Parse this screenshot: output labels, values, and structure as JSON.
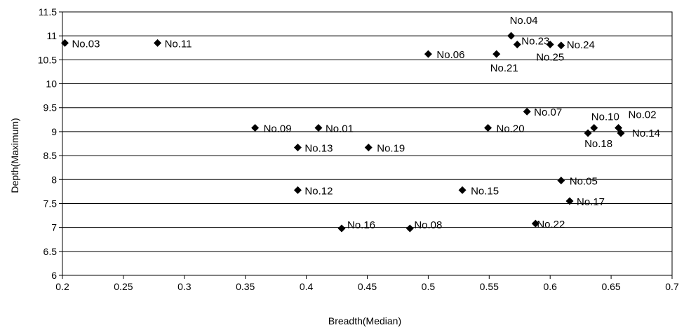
{
  "chart_data": {
    "type": "scatter",
    "title": "",
    "xlabel": "Breadth(Median)",
    "ylabel": "Depth(Maximum)",
    "xlim": [
      0.2,
      0.7
    ],
    "ylim": [
      6,
      11.5
    ],
    "xticks": [
      "0.2",
      "0.25",
      "0.3",
      "0.35",
      "0.4",
      "0.45",
      "0.5",
      "0.55",
      "0.6",
      "0.65",
      "0.7"
    ],
    "yticks": [
      "6",
      "6.5",
      "7",
      "7.5",
      "8",
      "8.5",
      "9",
      "9.5",
      "10",
      "10.5",
      "11",
      "11.5"
    ],
    "grid": "horizontal",
    "legend": "none",
    "marker": "diamond",
    "color": "#000000",
    "points": [
      {
        "label": "No.03",
        "x": 0.202,
        "y": 10.85
      },
      {
        "label": "No.11",
        "x": 0.278,
        "y": 10.85
      },
      {
        "label": "No.04",
        "x": 0.568,
        "y": 11.0
      },
      {
        "label": "No.23",
        "x": 0.573,
        "y": 10.82
      },
      {
        "label": "No.06",
        "x": 0.5,
        "y": 10.62
      },
      {
        "label": "No.25",
        "x": 0.6,
        "y": 10.82
      },
      {
        "label": "No.24",
        "x": 0.609,
        "y": 10.8
      },
      {
        "label": "No.21",
        "x": 0.556,
        "y": 10.62
      },
      {
        "label": "No.07",
        "x": 0.581,
        "y": 9.42
      },
      {
        "label": "No.10",
        "x": 0.636,
        "y": 9.08
      },
      {
        "label": "No.02",
        "x": 0.656,
        "y": 9.08
      },
      {
        "label": "No.18",
        "x": 0.631,
        "y": 8.97
      },
      {
        "label": "No.14",
        "x": 0.658,
        "y": 8.97
      },
      {
        "label": "No.09",
        "x": 0.358,
        "y": 9.08
      },
      {
        "label": "No.01",
        "x": 0.41,
        "y": 9.08
      },
      {
        "label": "No.20",
        "x": 0.549,
        "y": 9.08
      },
      {
        "label": "No.13",
        "x": 0.393,
        "y": 8.67
      },
      {
        "label": "No.19",
        "x": 0.451,
        "y": 8.67
      },
      {
        "label": "No.12",
        "x": 0.393,
        "y": 7.78
      },
      {
        "label": "No.15",
        "x": 0.528,
        "y": 7.78
      },
      {
        "label": "No.05",
        "x": 0.609,
        "y": 7.98
      },
      {
        "label": "No.17",
        "x": 0.616,
        "y": 7.55
      },
      {
        "label": "No.16",
        "x": 0.429,
        "y": 6.98
      },
      {
        "label": "No.08",
        "x": 0.485,
        "y": 6.98
      },
      {
        "label": "No.22",
        "x": 0.588,
        "y": 7.08
      }
    ]
  }
}
